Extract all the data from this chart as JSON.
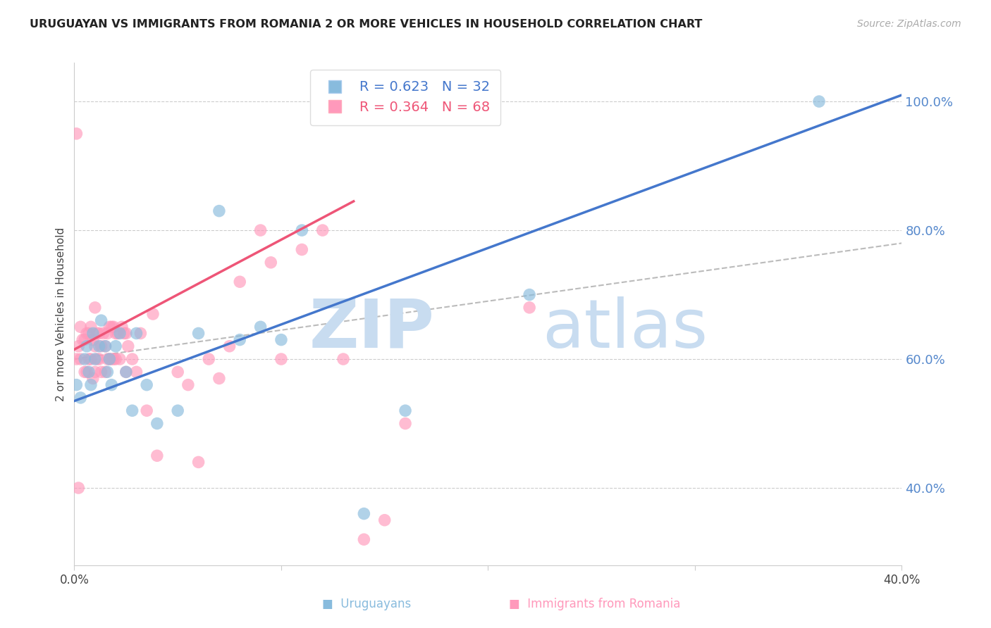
{
  "title": "URUGUAYAN VS IMMIGRANTS FROM ROMANIA 2 OR MORE VEHICLES IN HOUSEHOLD CORRELATION CHART",
  "source": "Source: ZipAtlas.com",
  "ylabel": "2 or more Vehicles in Household",
  "xlim": [
    0.0,
    0.4
  ],
  "ylim": [
    0.28,
    1.06
  ],
  "yticks_right": [
    0.4,
    0.6,
    0.8,
    1.0
  ],
  "blue_R": 0.623,
  "blue_N": 32,
  "pink_R": 0.364,
  "pink_N": 68,
  "blue_color": "#88BBDD",
  "pink_color": "#FF99BB",
  "blue_line_color": "#4477CC",
  "pink_line_color": "#EE5577",
  "grid_color": "#CCCCCC",
  "right_axis_label_color": "#5588CC",
  "blue_scatter_x": [
    0.001,
    0.003,
    0.005,
    0.006,
    0.007,
    0.008,
    0.009,
    0.01,
    0.012,
    0.013,
    0.015,
    0.016,
    0.017,
    0.018,
    0.02,
    0.022,
    0.025,
    0.028,
    0.03,
    0.035,
    0.04,
    0.05,
    0.06,
    0.07,
    0.08,
    0.09,
    0.1,
    0.11,
    0.14,
    0.16,
    0.22,
    0.36
  ],
  "blue_scatter_y": [
    0.56,
    0.54,
    0.6,
    0.62,
    0.58,
    0.56,
    0.64,
    0.6,
    0.62,
    0.66,
    0.62,
    0.58,
    0.6,
    0.56,
    0.62,
    0.64,
    0.58,
    0.52,
    0.64,
    0.56,
    0.5,
    0.52,
    0.64,
    0.83,
    0.63,
    0.65,
    0.63,
    0.8,
    0.36,
    0.52,
    0.7,
    1.0
  ],
  "pink_scatter_x": [
    0.001,
    0.001,
    0.002,
    0.003,
    0.003,
    0.004,
    0.005,
    0.005,
    0.006,
    0.006,
    0.007,
    0.007,
    0.008,
    0.008,
    0.009,
    0.009,
    0.01,
    0.01,
    0.01,
    0.011,
    0.011,
    0.012,
    0.012,
    0.013,
    0.013,
    0.014,
    0.015,
    0.015,
    0.016,
    0.016,
    0.017,
    0.017,
    0.018,
    0.018,
    0.019,
    0.019,
    0.02,
    0.02,
    0.021,
    0.022,
    0.023,
    0.024,
    0.025,
    0.025,
    0.026,
    0.028,
    0.03,
    0.032,
    0.035,
    0.038,
    0.04,
    0.05,
    0.055,
    0.06,
    0.065,
    0.07,
    0.075,
    0.08,
    0.09,
    0.095,
    0.1,
    0.11,
    0.12,
    0.13,
    0.14,
    0.15,
    0.16,
    0.22
  ],
  "pink_scatter_y": [
    0.95,
    0.6,
    0.62,
    0.65,
    0.6,
    0.63,
    0.58,
    0.63,
    0.58,
    0.64,
    0.6,
    0.64,
    0.6,
    0.65,
    0.57,
    0.63,
    0.58,
    0.62,
    0.68,
    0.6,
    0.64,
    0.6,
    0.64,
    0.58,
    0.62,
    0.64,
    0.58,
    0.62,
    0.6,
    0.64,
    0.6,
    0.65,
    0.6,
    0.65,
    0.6,
    0.65,
    0.6,
    0.64,
    0.64,
    0.6,
    0.65,
    0.64,
    0.64,
    0.58,
    0.62,
    0.6,
    0.58,
    0.64,
    0.52,
    0.67,
    0.45,
    0.58,
    0.56,
    0.44,
    0.6,
    0.57,
    0.62,
    0.72,
    0.8,
    0.75,
    0.6,
    0.77,
    0.8,
    0.6,
    0.32,
    0.35,
    0.5,
    0.68
  ],
  "pink_extra_x": [
    0.002
  ],
  "pink_extra_y": [
    0.4
  ],
  "blue_line_x0": 0.0,
  "blue_line_y0": 0.535,
  "blue_line_x1": 0.4,
  "blue_line_y1": 1.01,
  "pink_line_x0": 0.0,
  "pink_line_y0": 0.615,
  "pink_line_x1": 0.135,
  "pink_line_y1": 0.845,
  "dash_line_x0": 0.0,
  "dash_line_y0": 0.6,
  "dash_line_x1": 0.4,
  "dash_line_y1": 0.78
}
